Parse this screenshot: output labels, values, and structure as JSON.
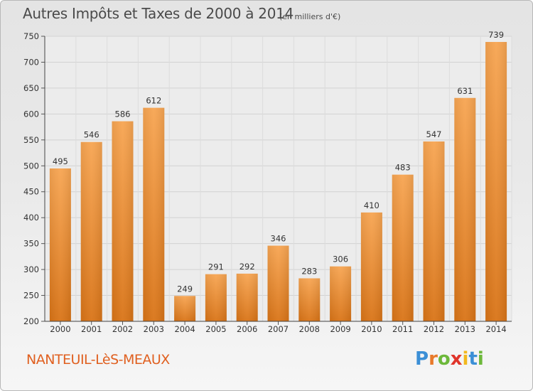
{
  "chart_data": {
    "type": "bar",
    "title": "Autres Impôts et Taxes de 2000 à 2014",
    "unit": "(en milliers d'€)",
    "categories": [
      "2000",
      "2001",
      "2002",
      "2003",
      "2004",
      "2005",
      "2006",
      "2007",
      "2008",
      "2009",
      "2010",
      "2011",
      "2012",
      "2013",
      "2014"
    ],
    "values": [
      495,
      546,
      586,
      612,
      249,
      291,
      292,
      346,
      283,
      306,
      410,
      483,
      547,
      631,
      739
    ],
    "data_labels": [
      "495",
      "546",
      "586",
      "612",
      "249",
      "291",
      "292",
      "346",
      "283",
      "306",
      "410",
      "483",
      "547",
      "631",
      "739"
    ],
    "ylim": [
      200,
      750
    ],
    "yticks": [
      200,
      250,
      300,
      350,
      400,
      450,
      500,
      550,
      600,
      650,
      700,
      750
    ],
    "grid": true,
    "legend": "none",
    "bar_color": "#f0922e"
  },
  "footer": {
    "commune": "NANTEUIL-LèS-MEAUX",
    "logo_text": "Proxiti",
    "logo_letters": [
      {
        "ch": "P",
        "color": "#3b8fd6"
      },
      {
        "ch": "r",
        "color": "#e8792a"
      },
      {
        "ch": "o",
        "color": "#6cb83a"
      },
      {
        "ch": "x",
        "color": "#e0352b"
      },
      {
        "ch": "i",
        "color": "#f2b81d"
      },
      {
        "ch": "t",
        "color": "#3b8fd6"
      },
      {
        "ch": "i",
        "color": "#6cb83a"
      }
    ]
  }
}
